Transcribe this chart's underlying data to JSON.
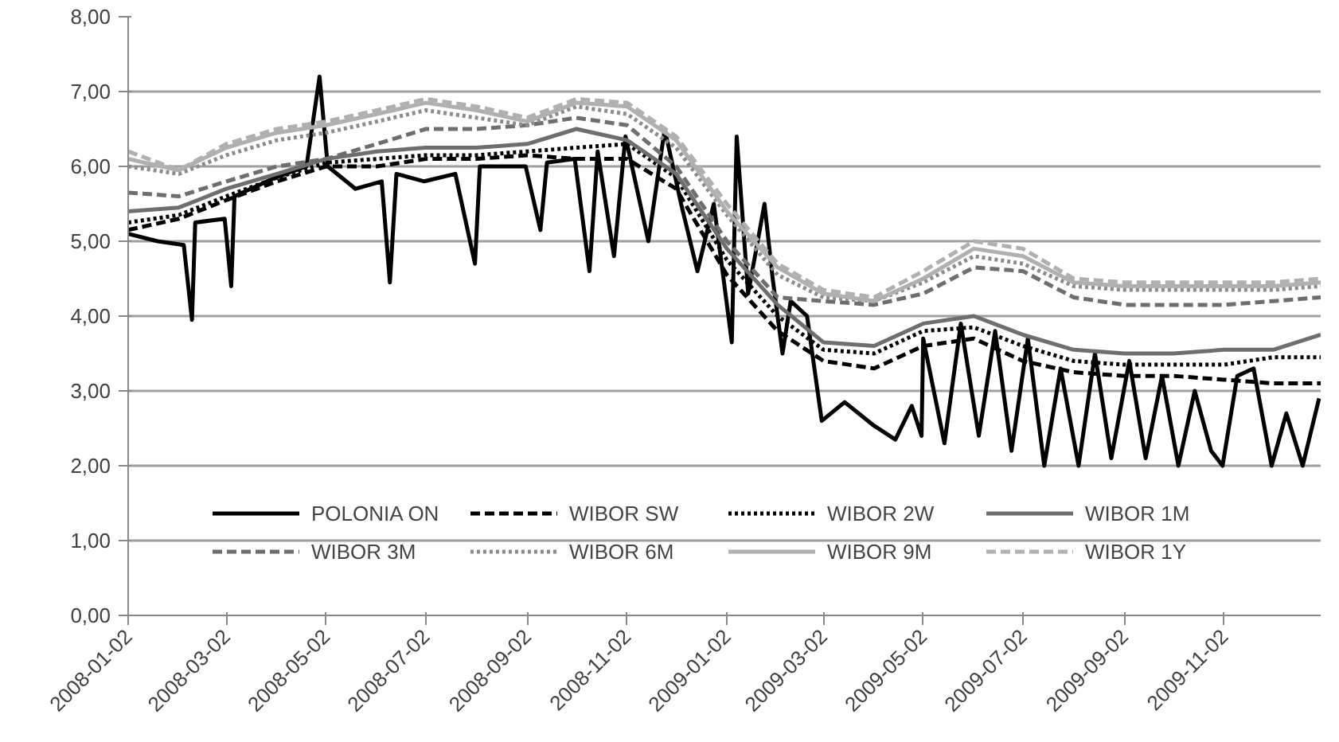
{
  "chart_data": {
    "type": "line",
    "grid": "y",
    "legend": "bottom",
    "marker": "none",
    "xlim": [
      "2008-01-02",
      "2009-12-31"
    ],
    "xticks": [
      "2008-01-02",
      "2008-03-02",
      "2008-05-02",
      "2008-07-02",
      "2008-09-02",
      "2008-11-02",
      "2009-01-02",
      "2009-03-02",
      "2009-05-02",
      "2009-07-02",
      "2009-09-02",
      "2009-11-02"
    ],
    "ylim": [
      0,
      8
    ],
    "yticks": [
      {
        "value": 0,
        "label": "0,00"
      },
      {
        "value": 1,
        "label": "1,00"
      },
      {
        "value": 2,
        "label": "2,00"
      },
      {
        "value": 3,
        "label": "3,00"
      },
      {
        "value": 4,
        "label": "4,00"
      },
      {
        "value": 5,
        "label": "5,00"
      },
      {
        "value": 6,
        "label": "6,00"
      },
      {
        "value": 7,
        "label": "7,00"
      },
      {
        "value": 8,
        "label": "8,00"
      }
    ],
    "x": [
      "2008-01-02",
      "2008-02-02",
      "2008-03-02",
      "2008-04-02",
      "2008-05-02",
      "2008-06-02",
      "2008-07-02",
      "2008-08-02",
      "2008-09-02",
      "2008-10-02",
      "2008-11-02",
      "2008-12-02",
      "2009-01-02",
      "2009-02-02",
      "2009-03-02",
      "2009-04-02",
      "2009-05-02",
      "2009-06-02",
      "2009-07-02",
      "2009-08-02",
      "2009-09-02",
      "2009-10-02",
      "2009-11-02",
      "2009-12-02",
      "2009-12-31"
    ],
    "series": [
      {
        "name": "POLONIA ON",
        "color": "#000000",
        "line_style": "solid",
        "x": [
          "2008-01-02",
          "2008-01-20",
          "2008-02-05",
          "2008-02-10",
          "2008-02-12",
          "2008-03-01",
          "2008-03-05",
          "2008-03-07",
          "2008-04-01",
          "2008-04-20",
          "2008-04-28",
          "2008-05-03",
          "2008-05-20",
          "2008-06-05",
          "2008-06-10",
          "2008-06-14",
          "2008-07-01",
          "2008-07-20",
          "2008-08-01",
          "2008-08-04",
          "2008-09-01",
          "2008-09-10",
          "2008-09-14",
          "2008-10-01",
          "2008-10-10",
          "2008-10-15",
          "2008-10-25",
          "2008-11-01",
          "2008-11-15",
          "2008-11-25",
          "2008-12-05",
          "2008-12-15",
          "2008-12-25",
          "2009-01-05",
          "2009-01-08",
          "2009-01-15",
          "2009-01-25",
          "2009-01-30",
          "2009-02-05",
          "2009-02-10",
          "2009-02-20",
          "2009-03-01",
          "2009-03-15",
          "2009-04-01",
          "2009-04-15",
          "2009-04-25",
          "2009-05-01",
          "2009-05-02",
          "2009-05-15",
          "2009-05-25",
          "2009-06-05",
          "2009-06-15",
          "2009-06-25",
          "2009-07-05",
          "2009-07-15",
          "2009-07-25",
          "2009-08-05",
          "2009-08-15",
          "2009-08-25",
          "2009-09-05",
          "2009-09-15",
          "2009-09-25",
          "2009-10-05",
          "2009-10-15",
          "2009-10-25",
          "2009-11-01",
          "2009-11-10",
          "2009-11-20",
          "2009-12-01",
          "2009-12-10",
          "2009-12-20",
          "2009-12-30"
        ],
        "values": [
          5.1,
          5.0,
          4.95,
          3.95,
          5.25,
          5.3,
          4.4,
          5.6,
          5.85,
          6.0,
          7.2,
          6.0,
          5.7,
          5.8,
          4.45,
          5.9,
          5.8,
          5.9,
          4.7,
          6.0,
          6.0,
          5.15,
          6.05,
          6.1,
          4.6,
          6.2,
          4.8,
          6.4,
          5.0,
          6.5,
          5.5,
          4.6,
          5.5,
          3.65,
          6.4,
          4.3,
          5.5,
          4.5,
          3.5,
          4.2,
          4.0,
          2.6,
          2.85,
          2.55,
          2.35,
          2.8,
          2.4,
          3.7,
          2.3,
          3.9,
          2.4,
          3.8,
          2.2,
          3.7,
          2.0,
          3.3,
          2.0,
          3.5,
          2.1,
          3.4,
          2.1,
          3.2,
          2.0,
          3.0,
          2.2,
          2.0,
          3.2,
          3.3,
          2.0,
          2.7,
          2.0,
          2.9
        ]
      },
      {
        "name": "WIBOR SW",
        "color": "#000000",
        "line_style": "dashed",
        "values": [
          5.15,
          5.3,
          5.55,
          5.8,
          6.0,
          6.0,
          6.1,
          6.1,
          6.15,
          6.1,
          6.1,
          5.7,
          4.55,
          3.8,
          3.4,
          3.3,
          3.6,
          3.7,
          3.4,
          3.25,
          3.2,
          3.2,
          3.15,
          3.1,
          3.1
        ]
      },
      {
        "name": "WIBOR 2W",
        "color": "#000000",
        "line_style": "dotted",
        "values": [
          5.25,
          5.35,
          5.6,
          5.85,
          6.05,
          6.1,
          6.15,
          6.15,
          6.2,
          6.25,
          6.3,
          5.85,
          4.75,
          4.0,
          3.55,
          3.5,
          3.8,
          3.85,
          3.6,
          3.4,
          3.35,
          3.35,
          3.35,
          3.45,
          3.45
        ]
      },
      {
        "name": "WIBOR 1M",
        "color": "#6e6e6e",
        "line_style": "solid",
        "values": [
          5.4,
          5.45,
          5.7,
          5.9,
          6.1,
          6.2,
          6.25,
          6.25,
          6.3,
          6.5,
          6.35,
          5.9,
          4.9,
          4.15,
          3.65,
          3.6,
          3.9,
          4.0,
          3.75,
          3.55,
          3.5,
          3.5,
          3.55,
          3.55,
          3.75
        ]
      },
      {
        "name": "WIBOR 3M",
        "color": "#6e6e6e",
        "line_style": "dashed",
        "values": [
          5.65,
          5.6,
          5.8,
          6.0,
          6.1,
          6.3,
          6.5,
          6.5,
          6.55,
          6.65,
          6.55,
          6.0,
          5.0,
          4.25,
          4.2,
          4.15,
          4.3,
          4.65,
          4.6,
          4.25,
          4.15,
          4.15,
          4.15,
          4.2,
          4.25
        ]
      },
      {
        "name": "WIBOR 6M",
        "color": "#8c8c8c",
        "line_style": "dotted",
        "values": [
          6.0,
          5.9,
          6.15,
          6.35,
          6.45,
          6.6,
          6.75,
          6.65,
          6.55,
          6.8,
          6.7,
          6.25,
          5.35,
          4.55,
          4.25,
          4.2,
          4.45,
          4.8,
          4.7,
          4.4,
          4.35,
          4.35,
          4.35,
          4.35,
          4.4
        ]
      },
      {
        "name": "WIBOR 9M",
        "color": "#b0b0b0",
        "line_style": "solid",
        "values": [
          6.1,
          5.95,
          6.25,
          6.45,
          6.55,
          6.7,
          6.85,
          6.75,
          6.6,
          6.85,
          6.8,
          6.35,
          5.4,
          4.65,
          4.3,
          4.2,
          4.5,
          4.9,
          4.8,
          4.45,
          4.4,
          4.4,
          4.4,
          4.4,
          4.45
        ]
      },
      {
        "name": "WIBOR 1Y",
        "color": "#b0b0b0",
        "line_style": "dashed",
        "values": [
          6.2,
          5.95,
          6.3,
          6.5,
          6.6,
          6.75,
          6.9,
          6.8,
          6.65,
          6.9,
          6.85,
          6.4,
          5.5,
          4.7,
          4.35,
          4.25,
          4.6,
          5.0,
          4.9,
          4.5,
          4.45,
          4.45,
          4.45,
          4.45,
          4.5
        ]
      }
    ]
  }
}
